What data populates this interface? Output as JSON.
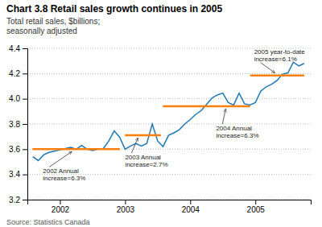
{
  "chart_data": {
    "type": "line",
    "title": "Chart 3.8 Retail sales growth continues in 2005",
    "subtitle": [
      "Total retail sales, $billions;",
      "seasonally adjusted"
    ],
    "source": "Source: Statistics Canada",
    "x": [
      2001.583,
      2001.667,
      2001.75,
      2001.833,
      2001.917,
      2002.0,
      2002.083,
      2002.167,
      2002.25,
      2002.333,
      2002.417,
      2002.5,
      2002.583,
      2002.667,
      2002.75,
      2002.833,
      2002.917,
      2003.0,
      2003.083,
      2003.167,
      2003.25,
      2003.333,
      2003.417,
      2003.5,
      2003.583,
      2003.667,
      2003.75,
      2003.833,
      2003.917,
      2004.0,
      2004.083,
      2004.167,
      2004.25,
      2004.333,
      2004.417,
      2004.5,
      2004.583,
      2004.667,
      2004.75,
      2004.833,
      2004.917,
      2005.0,
      2005.083,
      2005.167,
      2005.25,
      2005.333,
      2005.417,
      2005.5,
      2005.583,
      2005.667,
      2005.75
    ],
    "values": [
      3.54,
      3.51,
      3.555,
      3.575,
      3.585,
      3.595,
      3.605,
      3.615,
      3.6,
      3.63,
      3.6,
      3.59,
      3.6,
      3.605,
      3.665,
      3.745,
      3.695,
      3.6,
      3.625,
      3.645,
      3.625,
      3.645,
      3.8,
      3.665,
      3.62,
      3.71,
      3.73,
      3.755,
      3.8,
      3.835,
      3.875,
      3.905,
      3.955,
      4.005,
      4.03,
      4.045,
      3.97,
      3.95,
      4.045,
      3.96,
      3.95,
      3.97,
      4.06,
      4.095,
      4.115,
      4.145,
      4.195,
      4.205,
      4.29,
      4.26,
      4.28
    ],
    "ref_lines": [
      {
        "x0": 2001.58,
        "x1": 2002.92,
        "y": 3.6,
        "label": "2002 Annual\nincrease=6.3%"
      },
      {
        "x0": 2003.0,
        "x1": 2003.55,
        "y": 3.71,
        "label": "2003 Annual\nincrease=2.7%"
      },
      {
        "x0": 2003.58,
        "x1": 2004.92,
        "y": 3.94,
        "label": "2004 Annual\nincrease=6.3%"
      },
      {
        "x0": 2004.92,
        "x1": 2005.75,
        "y": 4.185,
        "label": "2005 year-to-date\nincrease=6.1%"
      }
    ],
    "xlim": [
      2001.5,
      2005.85
    ],
    "xticks": [
      2002,
      2003,
      2004,
      2005
    ],
    "ylim": [
      3.2,
      4.4
    ],
    "yticks": [
      3.2,
      3.4,
      3.6,
      3.8,
      {
        "value": 4.0,
        "label": "4.0"
      },
      4.2,
      4.4
    ],
    "grid": true
  }
}
